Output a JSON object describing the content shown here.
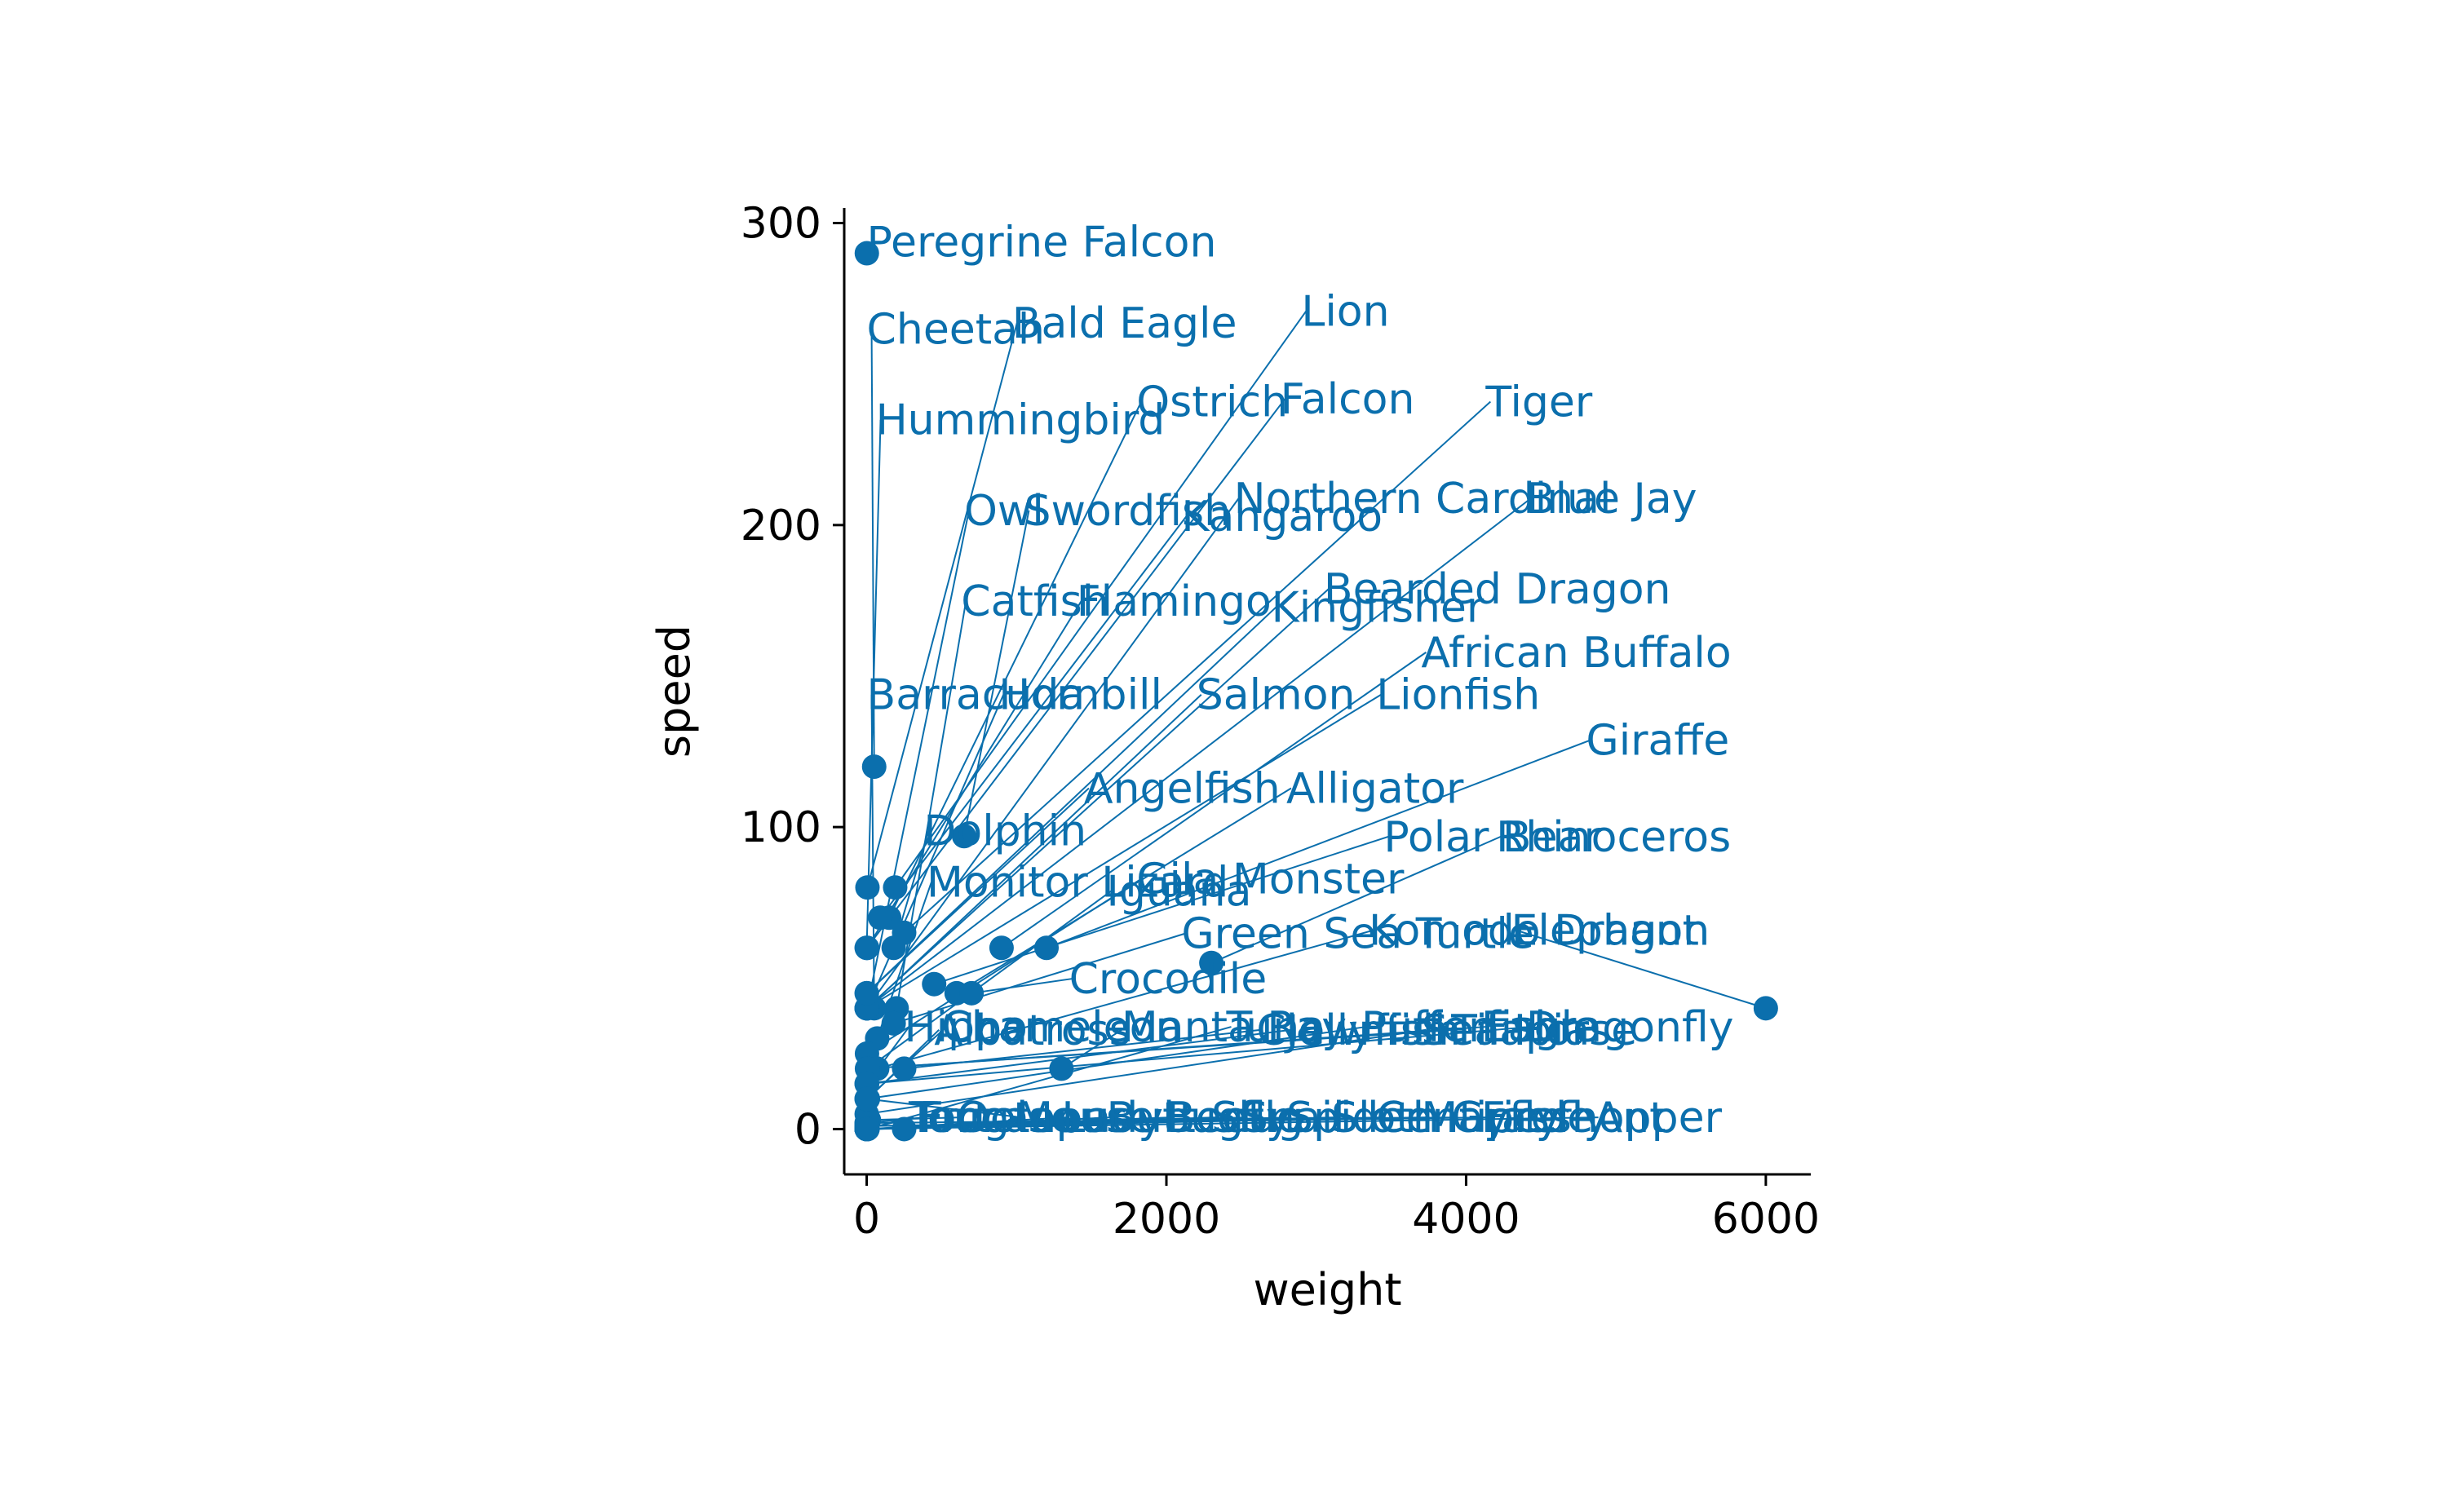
{
  "chart_data": {
    "type": "scatter",
    "title": "",
    "xlabel": "weight",
    "ylabel": "speed",
    "xlim": [
      -150,
      6300
    ],
    "ylim": [
      -15,
      305
    ],
    "xticks": [
      0,
      2000,
      4000,
      6000
    ],
    "yticks": [
      0,
      100,
      200,
      300
    ],
    "grid": false,
    "legend": "none",
    "colors": {
      "series": "#0b6fad",
      "axis": "#000000",
      "background": "#ffffff"
    },
    "points": [
      {
        "label": "Peregrine Falcon",
        "x": 1,
        "y": 290,
        "lx": 0,
        "ly": 289
      },
      {
        "label": "Cheetah",
        "x": 50,
        "y": 120,
        "lx": 0,
        "ly": 260
      },
      {
        "label": "Bald Eagle",
        "x": 5,
        "y": 80,
        "lx": 970,
        "ly": 262
      },
      {
        "label": "Lion",
        "x": 190,
        "y": 80,
        "lx": 2900,
        "ly": 266
      },
      {
        "label": "Hummingbird",
        "x": 0,
        "y": 60,
        "lx": 60,
        "ly": 230
      },
      {
        "label": "Ostrich",
        "x": 150,
        "y": 70,
        "lx": 1800,
        "ly": 236
      },
      {
        "label": "Falcon",
        "x": 1,
        "y": 60,
        "lx": 2760,
        "ly": 237
      },
      {
        "label": "Tiger",
        "x": 250,
        "y": 65,
        "lx": 4130,
        "ly": 236
      },
      {
        "label": "Owl",
        "x": 2,
        "y": 40,
        "lx": 650,
        "ly": 200
      },
      {
        "label": "Swordfish",
        "x": 650,
        "y": 97,
        "lx": 1050,
        "ly": 200
      },
      {
        "label": "Kangaroo",
        "x": 90,
        "y": 70,
        "lx": 2100,
        "ly": 198
      },
      {
        "label": "Northern Cardinal",
        "x": 0,
        "y": 40,
        "lx": 2450,
        "ly": 204
      },
      {
        "label": "Blue Jay",
        "x": 0,
        "y": 40,
        "lx": 4400,
        "ly": 204
      },
      {
        "label": "Catfish",
        "x": 200,
        "y": 40,
        "lx": 630,
        "ly": 170
      },
      {
        "label": "Flamingo",
        "x": 3,
        "y": 60,
        "lx": 1400,
        "ly": 170
      },
      {
        "label": "Kingfisher",
        "x": 0,
        "y": 45,
        "lx": 2700,
        "ly": 168
      },
      {
        "label": "Bearded Dragon",
        "x": 0,
        "y": 40,
        "lx": 3050,
        "ly": 174
      },
      {
        "label": "African Buffalo",
        "x": 900,
        "y": 60,
        "lx": 3700,
        "ly": 153
      },
      {
        "label": "Barracuda",
        "x": 50,
        "y": 40,
        "lx": 0,
        "ly": 139
      },
      {
        "label": "Hornbill",
        "x": 3,
        "y": 40,
        "lx": 880,
        "ly": 139
      },
      {
        "label": "Salmon",
        "x": 5,
        "y": 40,
        "lx": 2200,
        "ly": 139
      },
      {
        "label": "Lionfish",
        "x": 1,
        "y": 40,
        "lx": 3400,
        "ly": 139
      },
      {
        "label": "Giraffe",
        "x": 1200,
        "y": 60,
        "lx": 4800,
        "ly": 124
      },
      {
        "label": "Angelfish",
        "x": 1,
        "y": 45,
        "lx": 1450,
        "ly": 108
      },
      {
        "label": "Alligator",
        "x": 600,
        "y": 45,
        "lx": 2800,
        "ly": 108
      },
      {
        "label": "Dolphin",
        "x": 180,
        "y": 60,
        "lx": 380,
        "ly": 94
      },
      {
        "label": "Rhinoceros",
        "x": 2300,
        "y": 55,
        "lx": 4200,
        "ly": 92
      },
      {
        "label": "Polar Bear",
        "x": 450,
        "y": 48,
        "lx": 3450,
        "ly": 92
      },
      {
        "label": "Monitor Lizard",
        "x": 70,
        "y": 30,
        "lx": 400,
        "ly": 77
      },
      {
        "label": "Iguana",
        "x": 5,
        "y": 20,
        "lx": 1600,
        "ly": 74
      },
      {
        "label": "Gila Monster",
        "x": 2,
        "y": 25,
        "lx": 1800,
        "ly": 78
      },
      {
        "label": "Green Sea Turtle",
        "x": 180,
        "y": 35,
        "lx": 2100,
        "ly": 60
      },
      {
        "label": "Komodo Dragon",
        "x": 70,
        "y": 20,
        "lx": 3350,
        "ly": 61
      },
      {
        "label": "Elephant",
        "x": 6000,
        "y": 40,
        "lx": 4300,
        "ly": 61
      },
      {
        "label": "Crocodile",
        "x": 700,
        "y": 45,
        "lx": 1350,
        "ly": 45
      },
      {
        "label": "Hippo",
        "x": 3,
        "y": 15,
        "lx": 250,
        "ly": 29
      },
      {
        "label": "Chameleon",
        "x": 0,
        "y": 10,
        "lx": 500,
        "ly": 29
      },
      {
        "label": "Albatross",
        "x": 8,
        "y": 10,
        "lx": 450,
        "ly": 28
      },
      {
        "label": "Manta Ray",
        "x": 1300,
        "y": 20,
        "lx": 1700,
        "ly": 29
      },
      {
        "label": "Tuna",
        "x": 5,
        "y": 0,
        "lx": 2400,
        "ly": 29
      },
      {
        "label": "Clownfish",
        "x": 250,
        "y": 20,
        "lx": 2600,
        "ly": 28
      },
      {
        "label": "Jellyfish",
        "x": 0,
        "y": 15,
        "lx": 2800,
        "ly": 28
      },
      {
        "label": "Pufferfish",
        "x": 1,
        "y": 10,
        "lx": 3300,
        "ly": 29
      },
      {
        "label": "Sea Horse",
        "x": 0,
        "y": 5,
        "lx": 3700,
        "ly": 28
      },
      {
        "label": "Tilapia",
        "x": 2,
        "y": 20,
        "lx": 3900,
        "ly": 28
      },
      {
        "label": "Eagle",
        "x": 5,
        "y": 20,
        "lx": 4100,
        "ly": 29
      },
      {
        "label": "Dragonfly",
        "x": 0,
        "y": 15,
        "lx": 4400,
        "ly": 29
      },
      {
        "label": "Toucan",
        "x": 1,
        "y": 0,
        "lx": 280,
        "ly": -1
      },
      {
        "label": "Frog",
        "x": 0,
        "y": 2,
        "lx": 350,
        "ly": -1
      },
      {
        "label": "Tortoise",
        "x": 250,
        "y": 0,
        "lx": 300,
        "ly": -1
      },
      {
        "label": "Octopus",
        "x": 15,
        "y": 3,
        "lx": 600,
        "ly": -1
      },
      {
        "label": "Mouse",
        "x": 0,
        "y": 10,
        "lx": 1000,
        "ly": -1
      },
      {
        "label": "Ladybug",
        "x": 0,
        "y": 0,
        "lx": 1300,
        "ly": -1
      },
      {
        "label": "Butterfly",
        "x": 0,
        "y": 0,
        "lx": 1600,
        "ly": -1
      },
      {
        "label": "Beetle",
        "x": 0,
        "y": 0,
        "lx": 2000,
        "ly": -1
      },
      {
        "label": "Slug",
        "x": 0,
        "y": 0,
        "lx": 2300,
        "ly": -1
      },
      {
        "label": "Snail",
        "x": 0,
        "y": 0,
        "lx": 2500,
        "ly": -1
      },
      {
        "label": "Spider",
        "x": 0,
        "y": 0,
        "lx": 2800,
        "ly": -1
      },
      {
        "label": "Sloth",
        "x": 5,
        "y": 0,
        "lx": 3100,
        "ly": -1
      },
      {
        "label": "Centipede",
        "x": 0,
        "y": 0,
        "lx": 3400,
        "ly": -1
      },
      {
        "label": "Mayfly",
        "x": 0,
        "y": 1,
        "lx": 3700,
        "ly": -1
      },
      {
        "label": "Firefly",
        "x": 0,
        "y": 1,
        "lx": 4100,
        "ly": -1
      },
      {
        "label": "Grasshopper",
        "x": 0,
        "y": 2,
        "lx": 3900,
        "ly": -1
      },
      {
        "label": "Ant",
        "x": 0,
        "y": 0,
        "lx": 4850,
        "ly": -1
      }
    ]
  }
}
